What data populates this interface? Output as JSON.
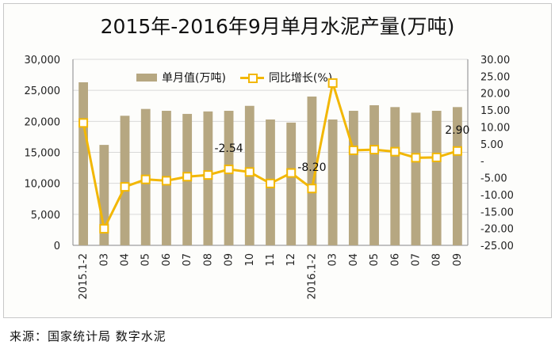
{
  "title": "2015年-2016年9月单月水泥产量(万吨)",
  "source": "来源：国家统计局 数字水泥",
  "colors": {
    "bar": "#b6a781",
    "line": "#f2b705",
    "grid": "#d9d9d9"
  },
  "chart_data": {
    "type": "bar",
    "title": "2015年-2016年9月单月水泥产量(万吨)",
    "categories": [
      "2015.1-2",
      "03",
      "04",
      "05",
      "06",
      "07",
      "08",
      "09",
      "10",
      "11",
      "12",
      "2016.1-2",
      "03",
      "04",
      "05",
      "06",
      "07",
      "08",
      "09"
    ],
    "series": [
      {
        "name": "单月值(万吨)",
        "type": "bar",
        "axis": "left",
        "values": [
          26300,
          16200,
          20900,
          22000,
          21700,
          21200,
          21600,
          21700,
          22500,
          20300,
          19800,
          24000,
          20300,
          21700,
          22600,
          22300,
          21400,
          21700,
          22300
        ]
      },
      {
        "name": "同比增长(%)",
        "type": "line",
        "axis": "right",
        "values": [
          11.2,
          -20.1,
          -7.7,
          -5.5,
          -5.9,
          -4.7,
          -4.2,
          -2.54,
          -3.3,
          -6.7,
          -3.6,
          -8.2,
          23.0,
          3.1,
          3.3,
          2.7,
          0.9,
          1.0,
          2.9
        ]
      }
    ],
    "left_axis": {
      "min": 0,
      "max": 30000,
      "step": 5000,
      "ticks": [
        "0",
        "5,000",
        "10,000",
        "15,000",
        "20,000",
        "25,000",
        "30,000"
      ]
    },
    "right_axis": {
      "min": -25,
      "max": 30,
      "step": 5,
      "ticks": [
        "-25.00",
        "-20.00",
        "-15.00",
        "-10.00",
        "-5.00",
        "-",
        "5.00",
        "10.00",
        "15.00",
        "20.00",
        "25.00",
        "30.00"
      ]
    },
    "data_labels": [
      {
        "index": 7,
        "text": "-2.54"
      },
      {
        "index": 11,
        "text": "-8.20"
      },
      {
        "index": 18,
        "text": "2.90"
      }
    ],
    "grid": true,
    "legend": "top-center"
  }
}
